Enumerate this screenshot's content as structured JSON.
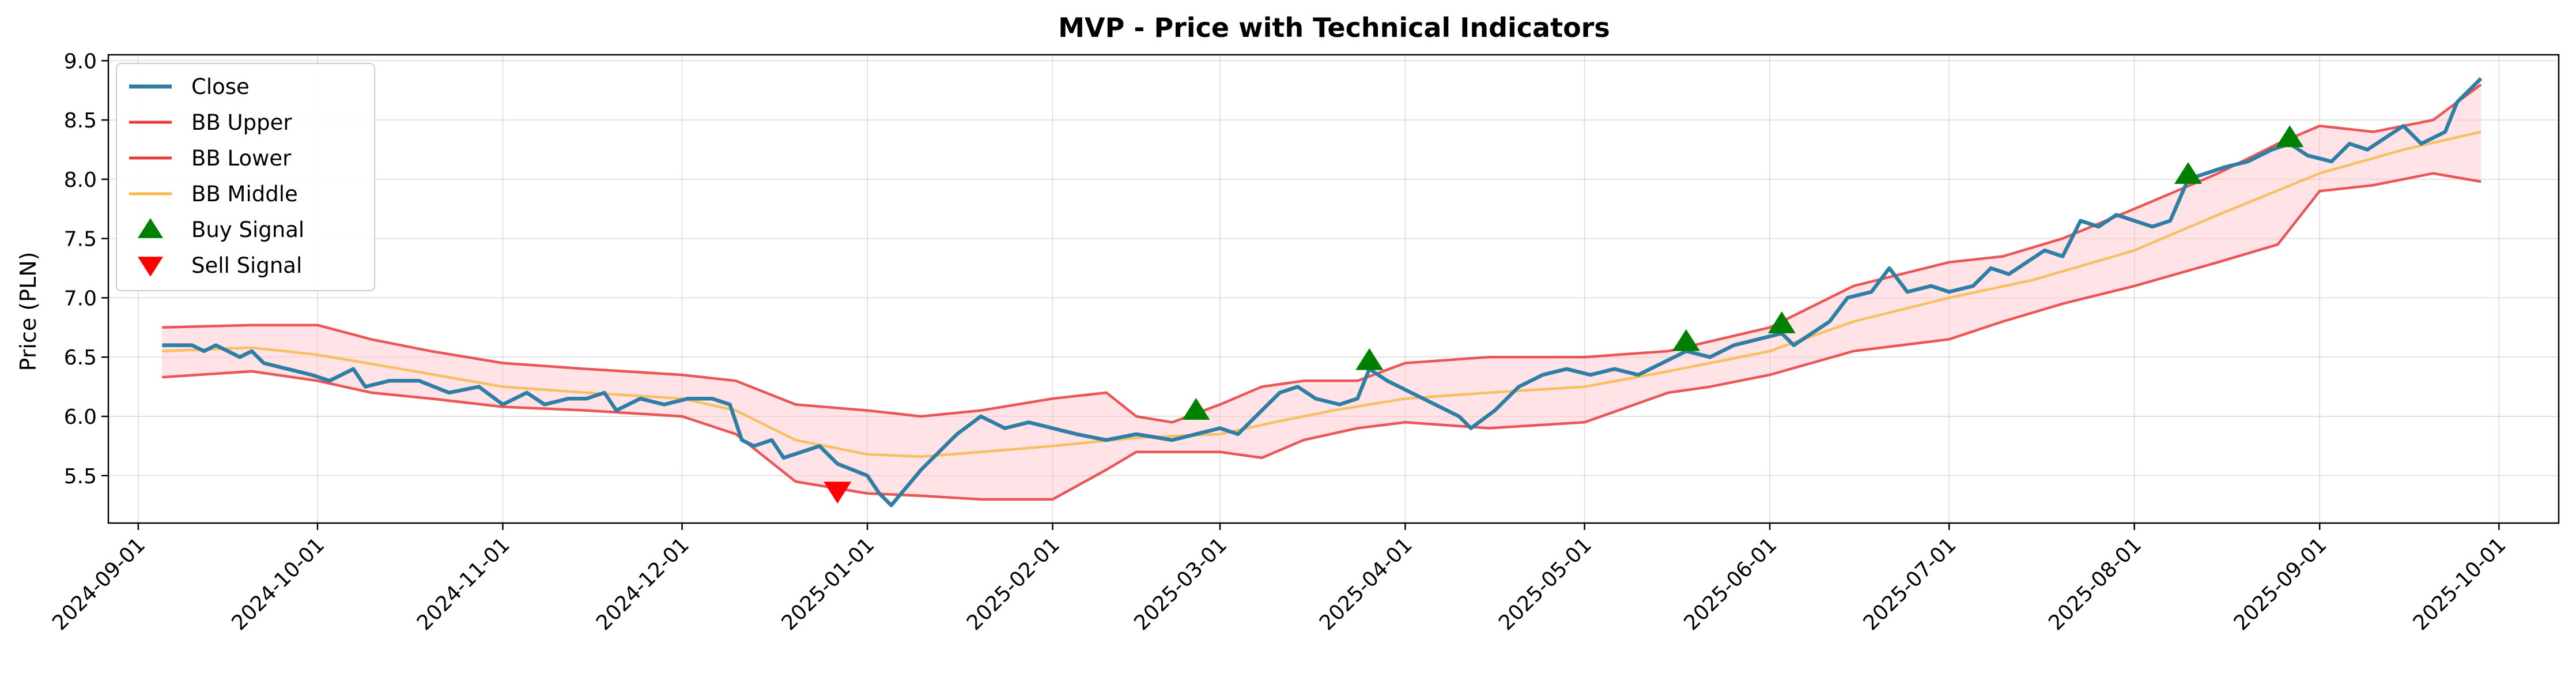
{
  "chart_data": {
    "type": "line",
    "title": "MVP - Price with Technical Indicators",
    "xlabel": "",
    "ylabel": "Price (PLN)",
    "x_axis": "date",
    "xlim": [
      "2024-08-27",
      "2025-10-11"
    ],
    "ylim": [
      5.1,
      9.05
    ],
    "grid": true,
    "legend_position": "top-left",
    "x_ticks": [
      "2024-09-01",
      "2024-10-01",
      "2024-11-01",
      "2024-12-01",
      "2025-01-01",
      "2025-02-01",
      "2025-03-01",
      "2025-04-01",
      "2025-05-01",
      "2025-06-01",
      "2025-07-01",
      "2025-08-01",
      "2025-09-01",
      "2025-10-01"
    ],
    "y_ticks": [
      "5.5",
      "6.0",
      "6.5",
      "7.0",
      "7.5",
      "8.0",
      "8.5",
      "9.0"
    ],
    "series": [
      {
        "name": "Close",
        "color": "#2e7ea6",
        "points": [
          [
            "2024-09-05",
            6.6
          ],
          [
            "2024-09-10",
            6.6
          ],
          [
            "2024-09-12",
            6.55
          ],
          [
            "2024-09-14",
            6.6
          ],
          [
            "2024-09-18",
            6.5
          ],
          [
            "2024-09-20",
            6.55
          ],
          [
            "2024-09-22",
            6.45
          ],
          [
            "2024-09-26",
            6.4
          ],
          [
            "2024-09-30",
            6.35
          ],
          [
            "2024-10-03",
            6.3
          ],
          [
            "2024-10-07",
            6.4
          ],
          [
            "2024-10-09",
            6.25
          ],
          [
            "2024-10-13",
            6.3
          ],
          [
            "2024-10-18",
            6.3
          ],
          [
            "2024-10-23",
            6.2
          ],
          [
            "2024-10-28",
            6.25
          ],
          [
            "2024-11-01",
            6.1
          ],
          [
            "2024-11-05",
            6.2
          ],
          [
            "2024-11-08",
            6.1
          ],
          [
            "2024-11-12",
            6.15
          ],
          [
            "2024-11-15",
            6.15
          ],
          [
            "2024-11-18",
            6.2
          ],
          [
            "2024-11-20",
            6.05
          ],
          [
            "2024-11-24",
            6.15
          ],
          [
            "2024-11-28",
            6.1
          ],
          [
            "2024-12-02",
            6.15
          ],
          [
            "2024-12-06",
            6.15
          ],
          [
            "2024-12-09",
            6.1
          ],
          [
            "2024-12-11",
            5.8
          ],
          [
            "2024-12-13",
            5.75
          ],
          [
            "2024-12-16",
            5.8
          ],
          [
            "2024-12-18",
            5.65
          ],
          [
            "2024-12-21",
            5.7
          ],
          [
            "2024-12-24",
            5.75
          ],
          [
            "2024-12-27",
            5.6
          ],
          [
            "2025-01-01",
            5.5
          ],
          [
            "2025-01-03",
            5.35
          ],
          [
            "2025-01-05",
            5.25
          ],
          [
            "2025-01-10",
            5.55
          ],
          [
            "2025-01-16",
            5.85
          ],
          [
            "2025-01-20",
            6.0
          ],
          [
            "2025-01-24",
            5.9
          ],
          [
            "2025-01-28",
            5.95
          ],
          [
            "2025-02-01",
            5.9
          ],
          [
            "2025-02-05",
            5.85
          ],
          [
            "2025-02-10",
            5.8
          ],
          [
            "2025-02-15",
            5.85
          ],
          [
            "2025-02-21",
            5.8
          ],
          [
            "2025-02-25",
            5.85
          ],
          [
            "2025-03-01",
            5.9
          ],
          [
            "2025-03-04",
            5.85
          ],
          [
            "2025-03-06",
            5.95
          ],
          [
            "2025-03-08",
            6.05
          ],
          [
            "2025-03-11",
            6.2
          ],
          [
            "2025-03-14",
            6.25
          ],
          [
            "2025-03-17",
            6.15
          ],
          [
            "2025-03-21",
            6.1
          ],
          [
            "2025-03-24",
            6.15
          ],
          [
            "2025-03-26",
            6.4
          ],
          [
            "2025-03-29",
            6.3
          ],
          [
            "2025-04-02",
            6.2
          ],
          [
            "2025-04-06",
            6.1
          ],
          [
            "2025-04-10",
            6.0
          ],
          [
            "2025-04-12",
            5.9
          ],
          [
            "2025-04-16",
            6.05
          ],
          [
            "2025-04-20",
            6.25
          ],
          [
            "2025-04-24",
            6.35
          ],
          [
            "2025-04-28",
            6.4
          ],
          [
            "2025-05-02",
            6.35
          ],
          [
            "2025-05-06",
            6.4
          ],
          [
            "2025-05-10",
            6.35
          ],
          [
            "2025-05-14",
            6.45
          ],
          [
            "2025-05-18",
            6.55
          ],
          [
            "2025-05-22",
            6.5
          ],
          [
            "2025-05-26",
            6.6
          ],
          [
            "2025-05-30",
            6.65
          ],
          [
            "2025-06-03",
            6.7
          ],
          [
            "2025-06-05",
            6.6
          ],
          [
            "2025-06-08",
            6.7
          ],
          [
            "2025-06-11",
            6.8
          ],
          [
            "2025-06-14",
            7.0
          ],
          [
            "2025-06-18",
            7.05
          ],
          [
            "2025-06-21",
            7.25
          ],
          [
            "2025-06-24",
            7.05
          ],
          [
            "2025-06-28",
            7.1
          ],
          [
            "2025-07-01",
            7.05
          ],
          [
            "2025-07-05",
            7.1
          ],
          [
            "2025-07-08",
            7.25
          ],
          [
            "2025-07-11",
            7.2
          ],
          [
            "2025-07-14",
            7.3
          ],
          [
            "2025-07-17",
            7.4
          ],
          [
            "2025-07-20",
            7.35
          ],
          [
            "2025-07-23",
            7.65
          ],
          [
            "2025-07-26",
            7.6
          ],
          [
            "2025-07-29",
            7.7
          ],
          [
            "2025-08-01",
            7.65
          ],
          [
            "2025-08-04",
            7.6
          ],
          [
            "2025-08-07",
            7.65
          ],
          [
            "2025-08-10",
            8.0
          ],
          [
            "2025-08-13",
            8.05
          ],
          [
            "2025-08-16",
            8.1
          ],
          [
            "2025-08-20",
            8.15
          ],
          [
            "2025-08-24",
            8.25
          ],
          [
            "2025-08-27",
            8.3
          ],
          [
            "2025-08-30",
            8.2
          ],
          [
            "2025-09-03",
            8.15
          ],
          [
            "2025-09-06",
            8.3
          ],
          [
            "2025-09-09",
            8.25
          ],
          [
            "2025-09-12",
            8.35
          ],
          [
            "2025-09-15",
            8.45
          ],
          [
            "2025-09-18",
            8.3
          ],
          [
            "2025-09-20",
            8.35
          ],
          [
            "2025-09-22",
            8.4
          ],
          [
            "2025-09-24",
            8.65
          ],
          [
            "2025-09-26",
            8.75
          ],
          [
            "2025-09-28",
            8.85
          ]
        ]
      },
      {
        "name": "BB Upper",
        "color": "#e83b3b",
        "points": [
          [
            "2024-09-05",
            6.75
          ],
          [
            "2024-09-20",
            6.77
          ],
          [
            "2024-10-01",
            6.77
          ],
          [
            "2024-10-10",
            6.65
          ],
          [
            "2024-10-20",
            6.55
          ],
          [
            "2024-11-01",
            6.45
          ],
          [
            "2024-11-15",
            6.4
          ],
          [
            "2024-12-01",
            6.35
          ],
          [
            "2024-12-10",
            6.3
          ],
          [
            "2024-12-20",
            6.1
          ],
          [
            "2025-01-01",
            6.05
          ],
          [
            "2025-01-10",
            6.0
          ],
          [
            "2025-01-20",
            6.05
          ],
          [
            "2025-02-01",
            6.15
          ],
          [
            "2025-02-10",
            6.2
          ],
          [
            "2025-02-15",
            6.0
          ],
          [
            "2025-02-21",
            5.95
          ],
          [
            "2025-03-01",
            6.1
          ],
          [
            "2025-03-08",
            6.25
          ],
          [
            "2025-03-15",
            6.3
          ],
          [
            "2025-03-24",
            6.3
          ],
          [
            "2025-04-01",
            6.45
          ],
          [
            "2025-04-15",
            6.5
          ],
          [
            "2025-05-01",
            6.5
          ],
          [
            "2025-05-15",
            6.55
          ],
          [
            "2025-06-01",
            6.75
          ],
          [
            "2025-06-15",
            7.1
          ],
          [
            "2025-07-01",
            7.3
          ],
          [
            "2025-07-10",
            7.35
          ],
          [
            "2025-07-20",
            7.5
          ],
          [
            "2025-08-01",
            7.75
          ],
          [
            "2025-08-15",
            8.05
          ],
          [
            "2025-08-25",
            8.3
          ],
          [
            "2025-09-01",
            8.45
          ],
          [
            "2025-09-10",
            8.4
          ],
          [
            "2025-09-20",
            8.5
          ],
          [
            "2025-09-28",
            8.8
          ]
        ]
      },
      {
        "name": "BB Lower",
        "color": "#e83b3b",
        "points": [
          [
            "2024-09-05",
            6.33
          ],
          [
            "2024-09-20",
            6.38
          ],
          [
            "2024-10-01",
            6.3
          ],
          [
            "2024-10-10",
            6.2
          ],
          [
            "2024-10-20",
            6.15
          ],
          [
            "2024-11-01",
            6.08
          ],
          [
            "2024-11-15",
            6.05
          ],
          [
            "2024-12-01",
            6.0
          ],
          [
            "2024-12-10",
            5.85
          ],
          [
            "2024-12-20",
            5.45
          ],
          [
            "2025-01-01",
            5.35
          ],
          [
            "2025-01-10",
            5.33
          ],
          [
            "2025-01-20",
            5.3
          ],
          [
            "2025-02-01",
            5.3
          ],
          [
            "2025-02-10",
            5.55
          ],
          [
            "2025-02-15",
            5.7
          ],
          [
            "2025-03-01",
            5.7
          ],
          [
            "2025-03-08",
            5.65
          ],
          [
            "2025-03-15",
            5.8
          ],
          [
            "2025-03-24",
            5.9
          ],
          [
            "2025-04-01",
            5.95
          ],
          [
            "2025-04-15",
            5.9
          ],
          [
            "2025-05-01",
            5.95
          ],
          [
            "2025-05-15",
            6.2
          ],
          [
            "2025-05-22",
            6.25
          ],
          [
            "2025-06-01",
            6.35
          ],
          [
            "2025-06-15",
            6.55
          ],
          [
            "2025-07-01",
            6.65
          ],
          [
            "2025-07-10",
            6.8
          ],
          [
            "2025-07-20",
            6.95
          ],
          [
            "2025-08-01",
            7.1
          ],
          [
            "2025-08-15",
            7.3
          ],
          [
            "2025-08-25",
            7.45
          ],
          [
            "2025-09-01",
            7.9
          ],
          [
            "2025-09-10",
            7.95
          ],
          [
            "2025-09-20",
            8.05
          ],
          [
            "2025-09-28",
            7.98
          ]
        ]
      },
      {
        "name": "BB Middle",
        "color": "#f7b84b",
        "points": [
          [
            "2024-09-05",
            6.55
          ],
          [
            "2024-09-20",
            6.58
          ],
          [
            "2024-10-01",
            6.52
          ],
          [
            "2024-10-15",
            6.4
          ],
          [
            "2024-11-01",
            6.25
          ],
          [
            "2024-11-15",
            6.2
          ],
          [
            "2024-12-01",
            6.15
          ],
          [
            "2024-12-10",
            6.05
          ],
          [
            "2024-12-20",
            5.8
          ],
          [
            "2025-01-01",
            5.68
          ],
          [
            "2025-01-10",
            5.66
          ],
          [
            "2025-01-20",
            5.7
          ],
          [
            "2025-02-01",
            5.75
          ],
          [
            "2025-02-15",
            5.82
          ],
          [
            "2025-03-01",
            5.85
          ],
          [
            "2025-03-10",
            5.95
          ],
          [
            "2025-03-20",
            6.05
          ],
          [
            "2025-04-01",
            6.15
          ],
          [
            "2025-04-15",
            6.2
          ],
          [
            "2025-05-01",
            6.25
          ],
          [
            "2025-05-15",
            6.38
          ],
          [
            "2025-06-01",
            6.55
          ],
          [
            "2025-06-15",
            6.8
          ],
          [
            "2025-07-01",
            7.0
          ],
          [
            "2025-07-15",
            7.15
          ],
          [
            "2025-08-01",
            7.4
          ],
          [
            "2025-08-15",
            7.7
          ],
          [
            "2025-09-01",
            8.05
          ],
          [
            "2025-09-15",
            8.25
          ],
          [
            "2025-09-28",
            8.4
          ]
        ]
      }
    ],
    "markers": [
      {
        "name": "Buy Signal",
        "color": "#008000",
        "shape": "triangle-up",
        "points": [
          [
            "2025-02-25",
            6.05
          ],
          [
            "2025-03-26",
            6.47
          ],
          [
            "2025-05-18",
            6.63
          ],
          [
            "2025-06-03",
            6.78
          ],
          [
            "2025-08-10",
            8.04
          ],
          [
            "2025-08-27",
            8.35
          ]
        ]
      },
      {
        "name": "Sell Signal",
        "color": "#ff0000",
        "shape": "triangle-down",
        "points": [
          [
            "2024-12-27",
            5.37
          ]
        ]
      }
    ],
    "band": {
      "upper": "BB Upper",
      "lower": "BB Lower",
      "fill": "#ffc0c8"
    }
  }
}
